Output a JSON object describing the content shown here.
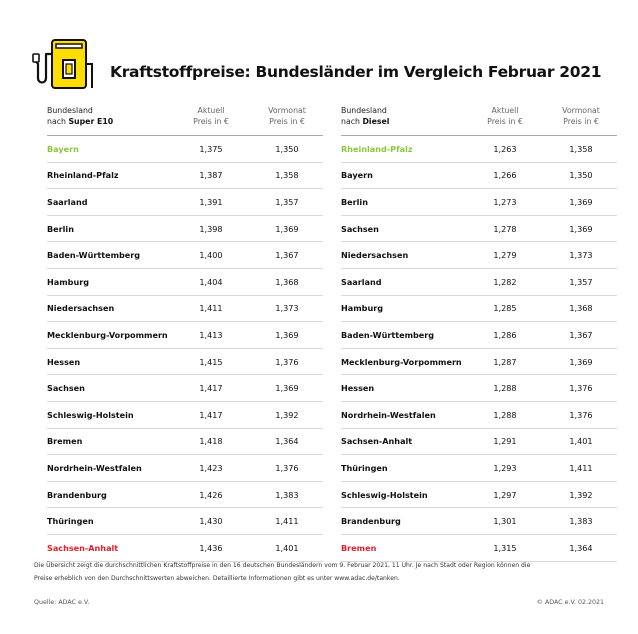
{
  "title": "Kraftstoffpreise: Bundesländer im Vergleich Februar 2021",
  "logo_icon": "fuel-pump-icon",
  "colors": {
    "accent_yellow": "#ffdd00",
    "best_green": "#8cc63f",
    "worst_red": "#e0202a"
  },
  "super": {
    "col1_line1": "Bundesland",
    "col1_prefix": "nach ",
    "col1_bold": "Super E10",
    "col2_line1": "Aktuell",
    "col2_line2": "Preis in €",
    "col3_line1": "Vormonat",
    "col3_line2": "Preis in €",
    "rows": [
      {
        "land": "Bayern",
        "aktuell": "1,375",
        "vormonat": "1,350"
      },
      {
        "land": "Rheinland-Pfalz",
        "aktuell": "1,387",
        "vormonat": "1,358"
      },
      {
        "land": "Saarland",
        "aktuell": "1,391",
        "vormonat": "1,357"
      },
      {
        "land": "Berlin",
        "aktuell": "1,398",
        "vormonat": "1,369"
      },
      {
        "land": "Baden-Württemberg",
        "aktuell": "1,400",
        "vormonat": "1,367"
      },
      {
        "land": "Hamburg",
        "aktuell": "1,404",
        "vormonat": "1,368"
      },
      {
        "land": "Niedersachsen",
        "aktuell": "1,411",
        "vormonat": "1,373"
      },
      {
        "land": "Mecklenburg-Vorpommern",
        "aktuell": "1,413",
        "vormonat": "1,369"
      },
      {
        "land": "Hessen",
        "aktuell": "1,415",
        "vormonat": "1,376"
      },
      {
        "land": "Sachsen",
        "aktuell": "1,417",
        "vormonat": "1,369"
      },
      {
        "land": "Schleswig-Holstein",
        "aktuell": "1,417",
        "vormonat": "1,392"
      },
      {
        "land": "Bremen",
        "aktuell": "1,418",
        "vormonat": "1,364"
      },
      {
        "land": "Nordrhein-Westfalen",
        "aktuell": "1,423",
        "vormonat": "1,376"
      },
      {
        "land": "Brandenburg",
        "aktuell": "1,426",
        "vormonat": "1,383"
      },
      {
        "land": "Thüringen",
        "aktuell": "1,430",
        "vormonat": "1,411"
      },
      {
        "land": "Sachsen-Anhalt",
        "aktuell": "1,436",
        "vormonat": "1,401"
      }
    ]
  },
  "diesel": {
    "col1_line1": "Bundesland",
    "col1_prefix": "nach ",
    "col1_bold": "Diesel",
    "col2_line1": "Aktuell",
    "col2_line2": "Preis in €",
    "col3_line1": "Vormonat",
    "col3_line2": "Preis in €",
    "rows": [
      {
        "land": "Rheinland-Pfalz",
        "aktuell": "1,263",
        "vormonat": "1,358"
      },
      {
        "land": "Bayern",
        "aktuell": "1,266",
        "vormonat": "1,350"
      },
      {
        "land": "Berlin",
        "aktuell": "1,273",
        "vormonat": "1,369"
      },
      {
        "land": "Sachsen",
        "aktuell": "1,278",
        "vormonat": "1,369"
      },
      {
        "land": "Niedersachsen",
        "aktuell": "1,279",
        "vormonat": "1,373"
      },
      {
        "land": "Saarland",
        "aktuell": "1,282",
        "vormonat": "1,357"
      },
      {
        "land": "Hamburg",
        "aktuell": "1,285",
        "vormonat": "1,368"
      },
      {
        "land": "Baden-Württemberg",
        "aktuell": "1,286",
        "vormonat": "1,367"
      },
      {
        "land": "Mecklenburg-Vorpommern",
        "aktuell": "1,287",
        "vormonat": "1,369"
      },
      {
        "land": "Hessen",
        "aktuell": "1,288",
        "vormonat": "1,376"
      },
      {
        "land": "Nordrhein-Westfalen",
        "aktuell": "1,288",
        "vormonat": "1,376"
      },
      {
        "land": "Sachsen-Anhalt",
        "aktuell": "1,291",
        "vormonat": "1,401"
      },
      {
        "land": "Thüringen",
        "aktuell": "1,293",
        "vormonat": "1,411"
      },
      {
        "land": "Schleswig-Holstein",
        "aktuell": "1,297",
        "vormonat": "1,392"
      },
      {
        "land": "Brandenburg",
        "aktuell": "1,301",
        "vormonat": "1,383"
      },
      {
        "land": "Bremen",
        "aktuell": "1,315",
        "vormonat": "1,364"
      }
    ]
  },
  "note_line1": "Die Übersicht zeigt die durchschnittlichen Kraftstoffpreise in den 16 deutschen Bundesländern vom 9. Februar 2021, 11 Uhr. Je nach Stadt oder Region können die",
  "note_line2": "Preise erheblich von den Durchschnittswerten abweichen. Detaillierte Informationen gibt es unter www.adac.de/tanken.",
  "source": "Quelle: ADAC e.V.",
  "copyright": "© ADAC e.V. 02.2021"
}
